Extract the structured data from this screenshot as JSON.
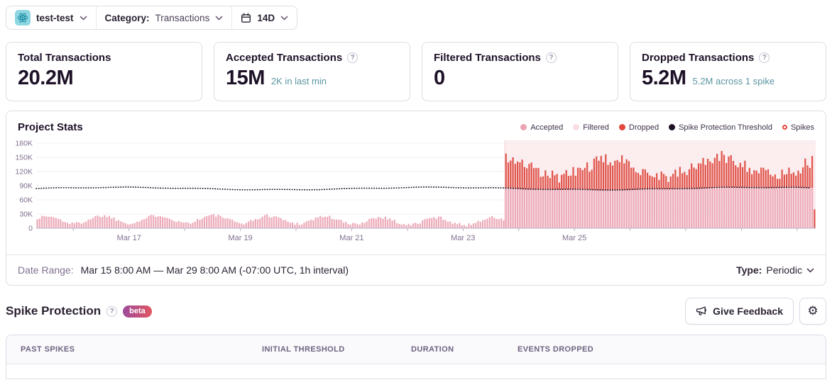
{
  "topbar": {
    "project": {
      "name": "test-test",
      "platform_icon": "react-atom-icon"
    },
    "category": {
      "label": "Category:",
      "value": "Transactions"
    },
    "period": {
      "value": "14D"
    }
  },
  "stat_cards": [
    {
      "title": "Total Transactions",
      "value": "20.2M",
      "subtext": "",
      "has_help": false
    },
    {
      "title": "Accepted Transactions",
      "value": "15M",
      "subtext": "2K in last min",
      "has_help": true
    },
    {
      "title": "Filtered Transactions",
      "value": "0",
      "subtext": "",
      "has_help": true
    },
    {
      "title": "Dropped Transactions",
      "value": "5.2M",
      "subtext": "5.2M across 1 spike",
      "has_help": true
    }
  ],
  "chart_card": {
    "title": "Project Stats",
    "footer": {
      "date_range_label": "Date Range:",
      "date_range_value": "Mar 15 8:00 AM — Mar 29 8:00 AM (-07:00 UTC, 1h interval)",
      "type_label": "Type:",
      "type_value": "Periodic"
    }
  },
  "chart_data": {
    "type": "bar",
    "stacked": true,
    "title": "Project Stats",
    "x_start": "Mar 15 8:00 AM",
    "x_end": "Mar 29 8:00 AM",
    "interval": "1h",
    "num_points": 336,
    "ylim": [
      0,
      180000
    ],
    "y_ticks": [
      {
        "value": 0,
        "label": "0"
      },
      {
        "value": 30000,
        "label": "30K"
      },
      {
        "value": 60000,
        "label": "60K"
      },
      {
        "value": 90000,
        "label": "90K"
      },
      {
        "value": 120000,
        "label": "120K"
      },
      {
        "value": 150000,
        "label": "150K"
      },
      {
        "value": 180000,
        "label": "180K"
      }
    ],
    "x_tick_labels": [
      {
        "index": 40,
        "label": "Mar 17"
      },
      {
        "index": 88,
        "label": "Mar 19"
      },
      {
        "index": 136,
        "label": "Mar 21"
      },
      {
        "index": 184,
        "label": "Mar 23"
      },
      {
        "index": 232,
        "label": "Mar 25"
      }
    ],
    "day_ticks": {
      "first_index": 16,
      "step": 24
    },
    "legend": [
      {
        "label": "Accepted",
        "color": "#eba3b2",
        "marker": "dot"
      },
      {
        "label": "Filtered",
        "color": "#f8dde2",
        "marker": "dot"
      },
      {
        "label": "Dropped",
        "color": "#e2483d",
        "marker": "dot"
      },
      {
        "label": "Spike Protection Threshold",
        "color": "#1d1127",
        "marker": "dot"
      },
      {
        "label": "Spikes",
        "color": "#e2483d",
        "marker": "ring"
      }
    ],
    "colors": {
      "accepted_bar": "#ecaab9",
      "dropped_bar": "#e0544b",
      "spike_region_bg": "#fcedee",
      "spike_region_edge": "#f5cdd2",
      "threshold_line": "#19121f",
      "gridline": "#f2eef5",
      "axis_line": "#b9b1c4",
      "tick_label": "#80708f"
    },
    "threshold": {
      "base": 84000,
      "wave_amp": 2500,
      "ripple_amp": 700
    },
    "pre_spike_accepted": {
      "base": 17000,
      "daily_amp": 8000,
      "multiday_amp": 2500,
      "noise": 3500,
      "min": 4000,
      "start_hour_of_day": 8
    },
    "spike": {
      "start_index": 202,
      "end_index": 335,
      "accepted_capped_at_threshold": true,
      "dropped_base": 45000,
      "dropped_wave": 18000,
      "dropped_noise": 14000,
      "dropped_min": 12000,
      "dropped_max": 78000,
      "last_bar_dropped_only": 40000,
      "total_dropped": "5.2M",
      "count": 1
    },
    "seed": 1337
  },
  "spike_protection": {
    "title": "Spike Protection",
    "badge": "beta",
    "feedback_button": "Give Feedback"
  },
  "spikes_table": {
    "columns": [
      "Past Spikes",
      "Initial Threshold",
      "Duration",
      "Events Dropped"
    ],
    "rows": []
  }
}
